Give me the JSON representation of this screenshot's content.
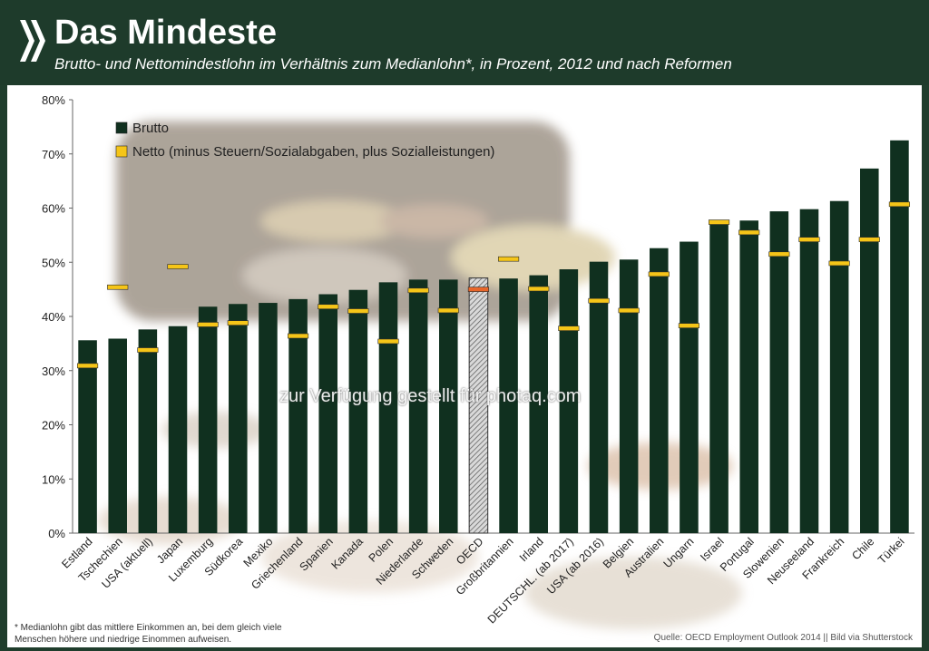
{
  "header": {
    "title": "Das Mindeste",
    "subtitle": "Brutto- und Nettomindestlohn im Verhältnis zum Medianlohn*, in Prozent, 2012 und nach Reformen"
  },
  "footnote": "* Medianlohn gibt das mittlere Einkommen an, bei dem gleich viele Menschen höhere und niedrige Einommen aufweisen.",
  "source": "Quelle: OECD Employment Outlook 2014 || Bild via Shutterstock",
  "watermark": "zur Verfügung gestellt für photaq.com",
  "colors": {
    "header_bg": "#1e3b2b",
    "brutto": "#10301f",
    "netto": "#f5c518",
    "oecd_netto": "#e8662a"
  },
  "chart_data": {
    "type": "bar",
    "ylim": [
      0,
      80
    ],
    "yticks": [
      "0%",
      "10%",
      "20%",
      "30%",
      "40%",
      "50%",
      "60%",
      "70%",
      "80%"
    ],
    "grid": false,
    "legend_position": "top-left",
    "categories": [
      "Estland",
      "Tschechien",
      "USA (aktuell)",
      "Japan",
      "Luxemburg",
      "Südkorea",
      "Mexiko",
      "Griechenland",
      "Spanien",
      "Kanada",
      "Polen",
      "Niederlande",
      "Schweden",
      "OECD",
      "Großbritannien",
      "Irland",
      "DEUTSCHL. (ab 2017)",
      "USA (ab 2016)",
      "Belgien",
      "Australien",
      "Ungarn",
      "Israel",
      "Portugal",
      "Slowenien",
      "Neuseeland",
      "Frankreich",
      "Chile",
      "Türkei"
    ],
    "series": [
      {
        "name": "Brutto",
        "values": [
          35.6,
          35.9,
          37.6,
          38.2,
          41.8,
          42.3,
          42.5,
          43.2,
          44.1,
          44.9,
          46.3,
          46.8,
          46.8,
          47.1,
          47.0,
          47.6,
          48.7,
          50.1,
          50.5,
          52.6,
          53.8,
          57.5,
          57.7,
          59.4,
          59.8,
          61.3,
          67.3,
          72.5
        ]
      },
      {
        "name": "Netto (minus Steuern/Sozialabgaben, plus Sozialleistungen)",
        "values": [
          30.9,
          45.4,
          33.8,
          null,
          38.5,
          38.8,
          null,
          36.4,
          41.8,
          41.0,
          35.4,
          44.8,
          41.1,
          45.0,
          50.6,
          45.1,
          37.8,
          42.9,
          41.1,
          47.8,
          38.3,
          57.4,
          55.5,
          51.5,
          54.2,
          49.8,
          54.2,
          60.7
        ]
      }
    ],
    "netto_floating": [
      null,
      null,
      null,
      49.2,
      null,
      null,
      null,
      null,
      null,
      null,
      null,
      null,
      null,
      null,
      null,
      null,
      null,
      null,
      null,
      null,
      null,
      null,
      null,
      null,
      null,
      null,
      null,
      null
    ],
    "highlight_category": "OECD"
  }
}
